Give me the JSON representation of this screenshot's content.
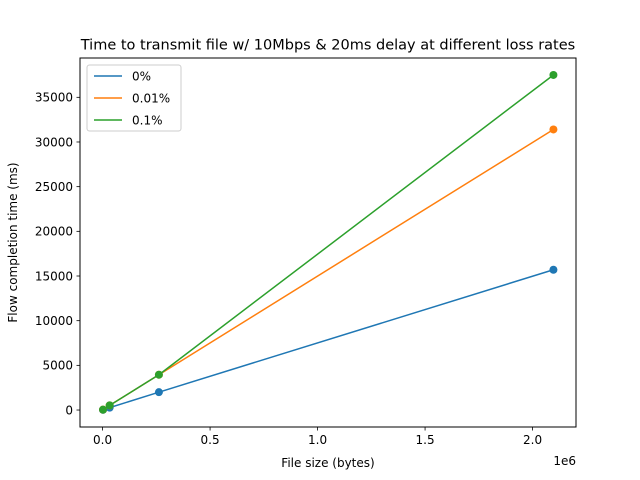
{
  "chart_data": {
    "type": "line",
    "title": "Time to transmit file w/ 10Mbps & 20ms delay at different loss rates",
    "xlabel": "File size (bytes)",
    "ylabel": "Flow completion time (ms)",
    "x_offset_text": "1e6",
    "xlim": [
      -0.105,
      2.202
    ],
    "ylim": [
      -1900,
      39400
    ],
    "x_scale_factor": 1000000,
    "x_ticks": [
      0.0,
      0.5,
      1.0,
      1.5,
      2.0
    ],
    "x_tick_labels": [
      "0.0",
      "0.5",
      "1.0",
      "1.5",
      "2.0"
    ],
    "y_ticks": [
      0,
      5000,
      10000,
      15000,
      20000,
      25000,
      30000,
      35000
    ],
    "y_tick_labels": [
      "0",
      "5000",
      "10000",
      "15000",
      "20000",
      "25000",
      "30000",
      "35000"
    ],
    "grid": false,
    "legend_position": "upper-left",
    "x": [
      2000,
      33000,
      262000,
      2097000
    ],
    "series": [
      {
        "name": "0%",
        "color": "#1f77b4",
        "values": [
          20,
          270,
          2000,
          15700
        ]
      },
      {
        "name": "0.01%",
        "color": "#ff7f0e",
        "values": [
          40,
          520,
          3950,
          31400
        ]
      },
      {
        "name": "0.1%",
        "color": "#2ca02c",
        "values": [
          40,
          520,
          3950,
          37500
        ]
      }
    ]
  }
}
